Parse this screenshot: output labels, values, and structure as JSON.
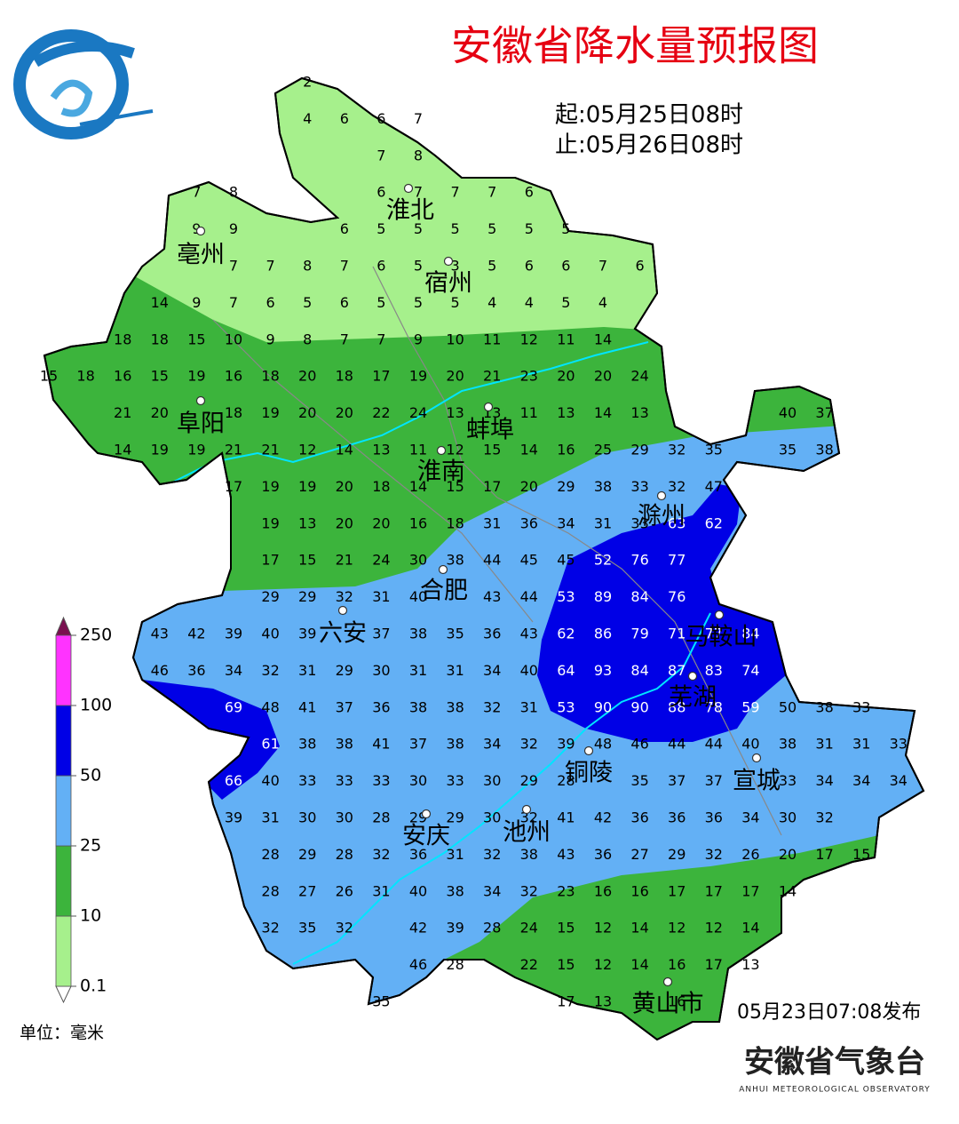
{
  "header": {
    "title": "安徽省降水量预报图",
    "start": "起:05月25日08时",
    "end": "止:05月26日08时"
  },
  "cities": [
    "淮北",
    "亳州",
    "宿州",
    "阜阳",
    "蚌埠",
    "淮南",
    "滁州",
    "合肥",
    "六安",
    "马鞍山",
    "芜湖",
    "铜陵",
    "宣城",
    "安庆",
    "池州",
    "黄山市"
  ],
  "grid": [
    [
      null,
      null,
      null,
      null,
      null,
      null,
      null,
      2
    ],
    [
      null,
      null,
      null,
      null,
      null,
      null,
      null,
      4,
      6,
      6,
      7
    ],
    [
      null,
      null,
      null,
      null,
      null,
      null,
      null,
      null,
      null,
      7,
      8
    ],
    [
      null,
      null,
      null,
      null,
      7,
      8,
      null,
      null,
      null,
      6,
      7,
      7,
      7,
      6
    ],
    [
      null,
      null,
      null,
      null,
      9,
      9,
      null,
      null,
      6,
      5,
      5,
      5,
      5,
      5,
      5
    ],
    [
      null,
      null,
      null,
      null,
      null,
      7,
      7,
      8,
      7,
      6,
      5,
      3,
      5,
      6,
      6,
      7,
      6
    ],
    [
      null,
      null,
      null,
      14,
      9,
      7,
      6,
      5,
      6,
      5,
      5,
      5,
      4,
      4,
      5,
      4
    ],
    [
      null,
      null,
      18,
      18,
      15,
      10,
      9,
      8,
      7,
      7,
      9,
      10,
      11,
      12,
      11,
      14
    ],
    [
      15,
      18,
      16,
      15,
      19,
      16,
      18,
      20,
      18,
      17,
      19,
      20,
      21,
      23,
      20,
      20,
      24
    ],
    [
      null,
      null,
      21,
      20,
      null,
      18,
      19,
      20,
      20,
      22,
      24,
      13,
      13,
      11,
      13,
      14,
      13,
      null,
      null,
      null,
      40,
      37
    ],
    [
      null,
      null,
      14,
      19,
      19,
      21,
      21,
      12,
      14,
      13,
      11,
      12,
      15,
      14,
      16,
      25,
      29,
      32,
      35,
      null,
      35,
      38
    ],
    [
      null,
      null,
      null,
      null,
      null,
      17,
      19,
      19,
      20,
      18,
      14,
      15,
      17,
      20,
      29,
      38,
      33,
      32,
      47
    ],
    [
      null,
      null,
      null,
      null,
      null,
      null,
      19,
      13,
      20,
      20,
      16,
      18,
      31,
      36,
      34,
      31,
      33,
      63,
      62
    ],
    [
      null,
      null,
      null,
      null,
      null,
      null,
      17,
      15,
      21,
      24,
      30,
      38,
      44,
      45,
      45,
      52,
      76,
      77
    ],
    [
      null,
      null,
      null,
      null,
      null,
      null,
      29,
      29,
      32,
      31,
      40,
      null,
      43,
      44,
      53,
      89,
      84,
      76
    ],
    [
      null,
      null,
      null,
      43,
      42,
      39,
      40,
      39,
      null,
      37,
      38,
      35,
      36,
      43,
      62,
      86,
      79,
      71,
      77,
      84
    ],
    [
      null,
      null,
      null,
      46,
      36,
      34,
      32,
      31,
      29,
      30,
      31,
      31,
      34,
      40,
      64,
      93,
      84,
      87,
      83,
      74
    ],
    [
      null,
      null,
      null,
      null,
      null,
      69,
      48,
      41,
      37,
      36,
      38,
      38,
      32,
      31,
      53,
      90,
      90,
      88,
      78,
      59,
      50,
      38,
      33
    ],
    [
      null,
      null,
      null,
      null,
      null,
      null,
      61,
      38,
      38,
      41,
      37,
      38,
      34,
      32,
      39,
      48,
      46,
      44,
      44,
      40,
      38,
      31,
      31,
      33
    ],
    [
      null,
      null,
      null,
      null,
      null,
      66,
      40,
      33,
      33,
      33,
      30,
      33,
      30,
      29,
      28,
      null,
      35,
      37,
      37,
      null,
      33,
      34,
      34,
      34
    ],
    [
      null,
      null,
      null,
      null,
      null,
      39,
      31,
      30,
      30,
      28,
      29,
      29,
      30,
      32,
      41,
      42,
      36,
      36,
      36,
      34,
      30,
      32
    ],
    [
      null,
      null,
      null,
      null,
      null,
      null,
      28,
      29,
      28,
      32,
      36,
      31,
      32,
      38,
      43,
      36,
      27,
      29,
      32,
      26,
      20,
      17,
      15
    ],
    [
      null,
      null,
      null,
      null,
      null,
      null,
      28,
      27,
      26,
      31,
      40,
      38,
      34,
      32,
      23,
      16,
      16,
      17,
      17,
      17,
      14
    ],
    [
      null,
      null,
      null,
      null,
      null,
      null,
      32,
      35,
      32,
      null,
      42,
      39,
      28,
      24,
      15,
      12,
      14,
      12,
      12,
      14
    ],
    [
      null,
      null,
      null,
      null,
      null,
      null,
      null,
      null,
      null,
      null,
      46,
      28,
      null,
      22,
      15,
      12,
      14,
      16,
      17,
      13
    ],
    [
      null,
      null,
      null,
      null,
      null,
      null,
      null,
      null,
      null,
      35,
      null,
      null,
      null,
      null,
      17,
      13,
      null,
      16
    ]
  ],
  "legend": {
    "ticks": [
      0.1,
      10,
      25,
      50,
      100,
      250
    ],
    "colors": [
      "#a6f08c",
      "#3cb43c",
      "#63b0f5",
      "#0000e6",
      "#ff33ff"
    ],
    "unit": "单位：毫米"
  },
  "footer": {
    "issued": "05月23日07:08发布",
    "agency": "安徽省气象台",
    "agency_en": "ANHUI METEOROLOGICAL OBSERVATORY"
  }
}
